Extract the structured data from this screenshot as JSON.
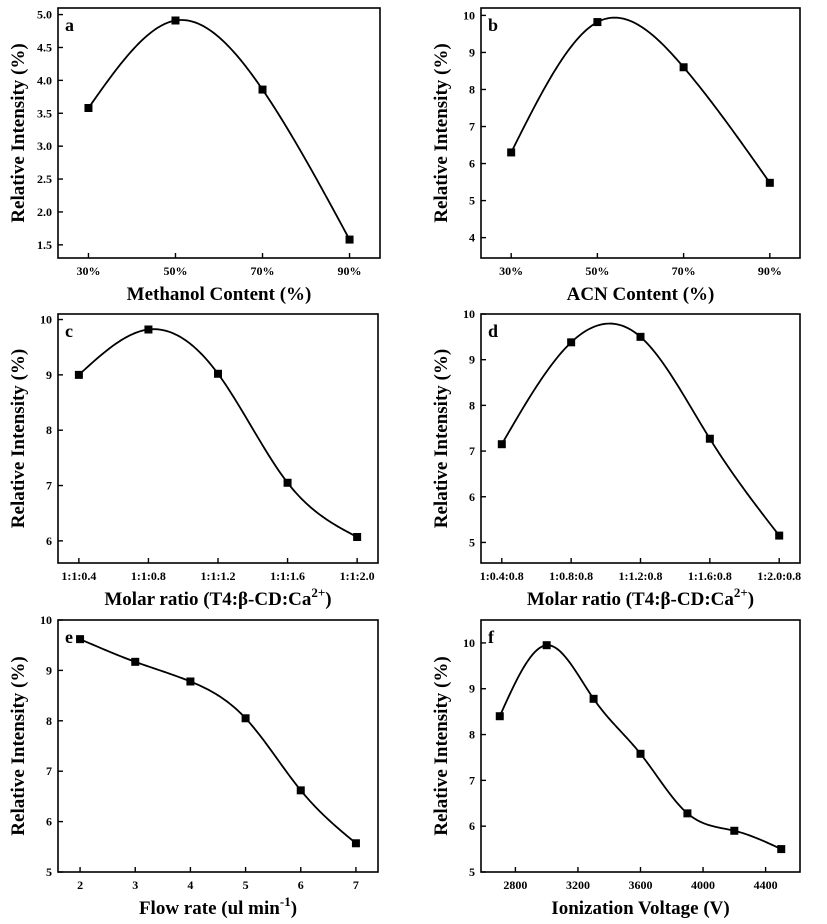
{
  "figure_title": "",
  "chart_data": [
    {
      "type": "scatter",
      "panel_label": "a",
      "xlabel": "Methanol Content (%)",
      "ylabel": "Relative Intensity (%)",
      "x_tick_labels": [
        "30%",
        "50%",
        "70%",
        "90%"
      ],
      "x": [
        0,
        1,
        2,
        3
      ],
      "y": [
        3.58,
        4.91,
        3.86,
        1.58
      ],
      "xlim": [
        -0.35,
        3.35
      ],
      "ylim": [
        1.3,
        5.1
      ],
      "y_ticks": [
        1.5,
        2.0,
        2.5,
        3.0,
        3.5,
        4.0,
        4.5,
        5.0
      ],
      "y_tick_labels": [
        "1.5",
        "2.0",
        "2.5",
        "3.0",
        "3.5",
        "4.0",
        "4.5",
        "5.0"
      ],
      "fit_line": true
    },
    {
      "type": "scatter",
      "panel_label": "b",
      "xlabel": "ACN Content (%)",
      "ylabel": "Relative Intensity (%)",
      "x_tick_labels": [
        "30%",
        "50%",
        "70%",
        "90%"
      ],
      "x": [
        0,
        1,
        2,
        3
      ],
      "y": [
        6.3,
        9.82,
        8.6,
        5.48
      ],
      "xlim": [
        -0.35,
        3.35
      ],
      "ylim": [
        3.45,
        10.2
      ],
      "y_ticks": [
        4,
        5,
        6,
        7,
        8,
        9,
        10
      ],
      "y_tick_labels": [
        "4",
        "5",
        "6",
        "7",
        "8",
        "9",
        "10"
      ],
      "fit_line": true
    },
    {
      "type": "scatter",
      "panel_label": "c",
      "xlabel": "Molar ratio (T4:β-CD:Ca",
      "xlabel_sup": "2+",
      "xlabel_end": ")",
      "ylabel": "Relative Intensity (%)",
      "x_tick_labels": [
        "1:1:0.4",
        "1:1:0.8",
        "1:1:1.2",
        "1:1:1.6",
        "1:1:2.0"
      ],
      "x": [
        0,
        1,
        2,
        3,
        4
      ],
      "y": [
        9.0,
        9.82,
        9.02,
        7.05,
        6.07
      ],
      "xlim": [
        -0.3,
        4.3
      ],
      "ylim": [
        5.6,
        10.1
      ],
      "y_ticks": [
        6,
        7,
        8,
        9,
        10
      ],
      "y_tick_labels": [
        "6",
        "7",
        "8",
        "9",
        "10"
      ],
      "fit_line": true
    },
    {
      "type": "scatter",
      "panel_label": "d",
      "xlabel": "Molar ratio (T4:β-CD:Ca",
      "xlabel_sup": "2+",
      "xlabel_end": ")",
      "ylabel": "Relative Intensity (%)",
      "x_tick_labels": [
        "1:0.4:0.8",
        "1:0.8:0.8",
        "1:1.2:0.8",
        "1:1.6:0.8",
        "1:2.0:0.8"
      ],
      "x": [
        0,
        1,
        2,
        3,
        4
      ],
      "y": [
        7.15,
        9.38,
        9.5,
        7.27,
        5.15
      ],
      "xlim": [
        -0.3,
        4.3
      ],
      "ylim": [
        4.55,
        10.0
      ],
      "y_ticks": [
        5,
        6,
        7,
        8,
        9,
        10
      ],
      "y_tick_labels": [
        "5",
        "6",
        "7",
        "8",
        "9",
        "10"
      ],
      "fit_line": true
    },
    {
      "type": "scatter",
      "panel_label": "e",
      "xlabel": "Flow rate (ul min",
      "xlabel_sup": "-1",
      "xlabel_end": ")",
      "ylabel": "Relative Intensity (%)",
      "x_tick_labels": [
        "2",
        "3",
        "4",
        "5",
        "6",
        "7"
      ],
      "x": [
        2,
        3,
        4,
        5,
        6,
        7
      ],
      "y": [
        9.62,
        9.17,
        8.78,
        8.05,
        6.62,
        5.57
      ],
      "xlim": [
        1.6,
        7.4
      ],
      "ylim": [
        5.0,
        10.0
      ],
      "y_ticks": [
        5,
        6,
        7,
        8,
        9,
        10
      ],
      "y_tick_labels": [
        "5",
        "6",
        "7",
        "8",
        "9",
        "10"
      ],
      "fit_line": true
    },
    {
      "type": "scatter",
      "panel_label": "f",
      "xlabel": "Ionization Voltage (V)",
      "ylabel": "Relative Intensity (%)",
      "x_tick_labels": [
        "2800",
        "3200",
        "3600",
        "4000",
        "4400"
      ],
      "x_ticks": [
        2800,
        3200,
        3600,
        4000,
        4400
      ],
      "x": [
        2700,
        3000,
        3300,
        3600,
        3900,
        4200,
        4500
      ],
      "y": [
        8.4,
        9.95,
        8.78,
        7.58,
        6.28,
        5.9,
        5.5
      ],
      "xlim": [
        2580,
        4620
      ],
      "ylim": [
        5.0,
        10.5
      ],
      "y_ticks": [
        5,
        6,
        7,
        8,
        9,
        10
      ],
      "y_tick_labels": [
        "5",
        "6",
        "7",
        "8",
        "9",
        "10"
      ],
      "fit_line": true
    }
  ]
}
